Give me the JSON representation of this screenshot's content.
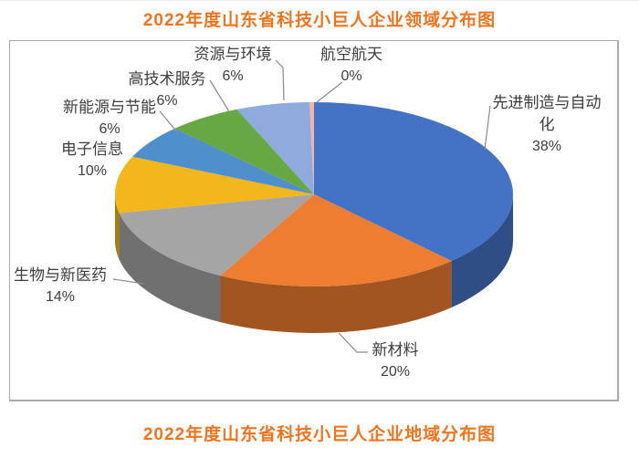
{
  "page": {
    "background": "#ffffff",
    "title_color": "#ee7420",
    "label_text_color": "#3d3d3d",
    "leader_line_color": "#8a8a8a",
    "frame_border_color": "#a9a9a9"
  },
  "top_banner": {
    "title": "2022年度山东省科技小巨人企业领域分布图"
  },
  "bottom_banner": {
    "title": "2022年度山东省科技小巨人企业地域分布图"
  },
  "chart_data": {
    "type": "pie",
    "style": "3d-pie",
    "title": "2022年度山东省科技小巨人企业领域分布图",
    "legend_position": "none",
    "label_format": "category name + percent, with gray leader lines",
    "start_angle_deg": -90,
    "direction": "clockwise",
    "slices": [
      {
        "name": "先进制造与自动化",
        "pct": "38%",
        "value": 38,
        "color": "#4472C4"
      },
      {
        "name": "新材料",
        "pct": "20%",
        "value": 20,
        "color": "#ED7D31"
      },
      {
        "name": "生物与新医药",
        "pct": "14%",
        "value": 14,
        "color": "#A5A5A5"
      },
      {
        "name": "电子信息",
        "pct": "10%",
        "value": 10,
        "color": "#F3B71C"
      },
      {
        "name": "新能源与节能",
        "pct": "6%",
        "value": 6,
        "color": "#4E8FCC"
      },
      {
        "name": "高技术服务",
        "pct": "6%",
        "value": 6,
        "color": "#67A844"
      },
      {
        "name": "资源与环境",
        "pct": "6%",
        "value": 6,
        "color": "#8FAADC"
      },
      {
        "name": "航空航天",
        "pct": "0%",
        "value": 0,
        "color": "#F2B3AA"
      }
    ]
  }
}
